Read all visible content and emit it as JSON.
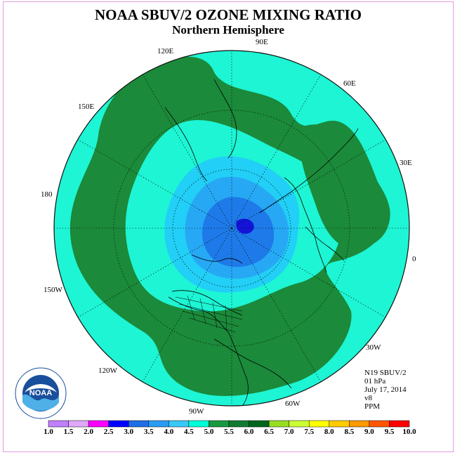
{
  "title": "NOAA SBUV/2 OZONE MIXING RATIO",
  "subtitle": "Northern Hemisphere",
  "longitude_labels": {
    "lon_90e": "90E",
    "lon_120e": "120E",
    "lon_60e": "60E",
    "lon_150e": "150E",
    "lon_30e": "30E",
    "lon_180": "180",
    "lon_0": "0",
    "lon_150w": "150W",
    "lon_30w": "30W",
    "lon_120w": "120W",
    "lon_60w": "60W",
    "lon_90w": "90W"
  },
  "info": {
    "satellite": "N19 SBUV/2",
    "level": "01 hPa",
    "date": "July 17, 2014",
    "version": "v8",
    "units": "PPM"
  },
  "colorbar": {
    "ticks": [
      "1.0",
      "1.5",
      "2.0",
      "2.5",
      "3.0",
      "3.5",
      "4.0",
      "4.5",
      "5.0",
      "5.5",
      "6.0",
      "6.5",
      "7.0",
      "7.5",
      "8.0",
      "8.5",
      "9.0",
      "9.5",
      "10.0"
    ],
    "colors": [
      "#bf80ff",
      "#e0a8ff",
      "#ff00ff",
      "#0000ff",
      "#1e6fe6",
      "#2a9bf5",
      "#38c8f8",
      "#00ffd8",
      "#199a41",
      "#117a32",
      "#00661c",
      "#99dd22",
      "#ccff33",
      "#ffff00",
      "#ffcc00",
      "#ff9900",
      "#ff5500",
      "#ff0000",
      "#8b5a2b"
    ]
  },
  "map_colors": {
    "ocean_level_4_5": "#1df5d4",
    "band_5_0": "#1b8a3a",
    "level_4_0": "#22cff6",
    "level_3_5": "#27a8f4",
    "level_3_0": "#1e7ae8",
    "level_2_5": "#1414d8",
    "rim": "#111111"
  },
  "logo": {
    "text": "NOAA"
  }
}
